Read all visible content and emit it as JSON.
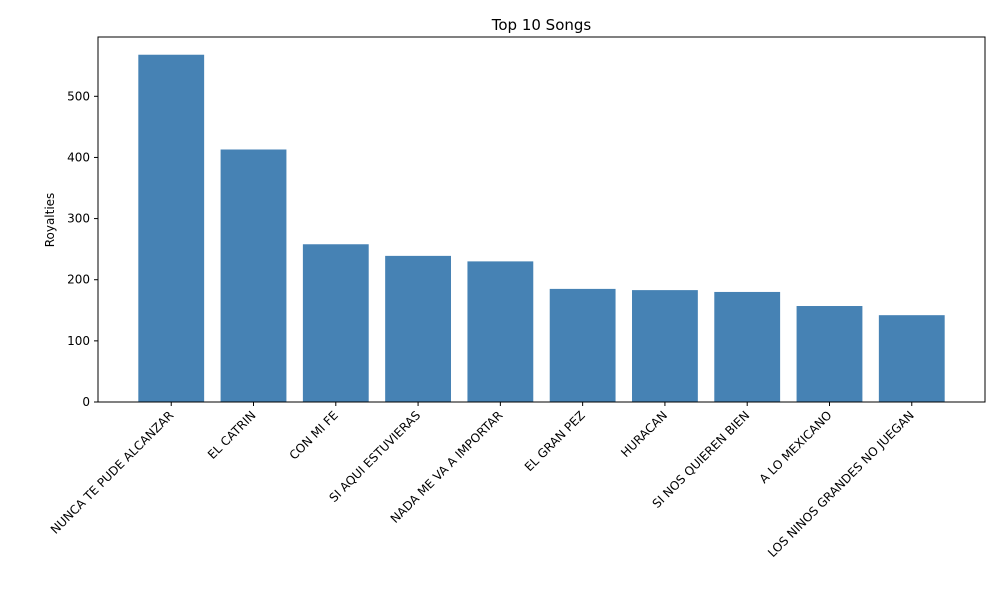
{
  "chart_data": {
    "type": "bar",
    "title": "Top 10 Songs",
    "xlabel": "",
    "ylabel": "Royalties",
    "categories": [
      "NUNCA TE PUDE ALCANZAR",
      "EL CATRIN",
      "CON MI FE",
      "SI AQUI ESTUVIERAS",
      "NADA ME VA A IMPORTAR",
      "EL GRAN PEZ",
      "HURACAN",
      "SI NOS QUIEREN BIEN",
      "A LO MEXICANO",
      "LOS NINOS GRANDES NO JUEGAN"
    ],
    "values": [
      568,
      413,
      258,
      239,
      230,
      185,
      183,
      180,
      157,
      142
    ],
    "ylim": [
      0,
      597
    ],
    "yticks": [
      0,
      100,
      200,
      300,
      400,
      500
    ],
    "grid": false,
    "bar_color": "#4682b4"
  }
}
